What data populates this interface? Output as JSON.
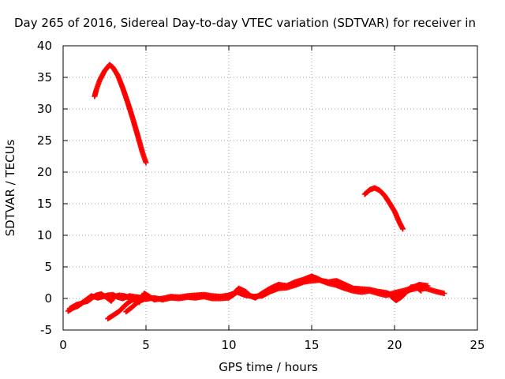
{
  "chart_data": {
    "type": "scatter",
    "title": "Day 265 of 2016, Sidereal Day-to-day VTEC variation (SDTVAR) for receiver in",
    "xlabel": "GPS time / hours",
    "ylabel": "SDTVAR / TECUs",
    "xlim": [
      0,
      25
    ],
    "ylim": [
      -5,
      40
    ],
    "xticks": [
      0,
      5,
      10,
      15,
      20,
      25
    ],
    "yticks": [
      -5,
      0,
      5,
      10,
      15,
      20,
      25,
      30,
      35,
      40
    ],
    "grid": true,
    "grid_style": "dotted",
    "marker": "plus",
    "color": "#ff0000",
    "series": [
      {
        "segments": [
          [
            [
              1.9,
              32.0
            ],
            [
              2.0,
              33.0
            ],
            [
              2.2,
              34.5
            ],
            [
              2.5,
              36.0
            ],
            [
              2.8,
              37.0
            ],
            [
              3.0,
              36.6
            ],
            [
              3.3,
              35.3
            ],
            [
              3.6,
              33.3
            ],
            [
              3.9,
              31.0
            ],
            [
              4.2,
              28.5
            ],
            [
              4.5,
              25.8
            ],
            [
              4.8,
              23.0
            ],
            [
              5.0,
              21.5
            ]
          ],
          [
            [
              18.2,
              16.5
            ],
            [
              18.5,
              17.2
            ],
            [
              18.8,
              17.5
            ],
            [
              19.1,
              17.1
            ],
            [
              19.4,
              16.3
            ],
            [
              19.7,
              15.1
            ],
            [
              20.0,
              13.8
            ],
            [
              20.3,
              12.0
            ],
            [
              20.5,
              11.0
            ]
          ],
          [
            [
              0.3,
              -2.0
            ],
            [
              0.6,
              -1.5
            ],
            [
              0.9,
              -1.2
            ],
            [
              1.2,
              -0.6
            ],
            [
              1.5,
              -0.4
            ],
            [
              1.8,
              0.2
            ],
            [
              2.0,
              0.5
            ],
            [
              2.3,
              0.7
            ],
            [
              2.6,
              0.2
            ],
            [
              2.9,
              -0.4
            ],
            [
              3.1,
              0.3
            ],
            [
              3.4,
              0.5
            ],
            [
              3.7,
              0.4
            ],
            [
              4.0,
              0.1
            ],
            [
              4.3,
              -0.2
            ],
            [
              4.6,
              -0.6
            ],
            [
              4.9,
              0.8
            ],
            [
              5.2,
              0.3
            ],
            [
              5.5,
              -0.2
            ],
            [
              6.0,
              0.0
            ],
            [
              6.5,
              0.3
            ],
            [
              7.0,
              0.2
            ],
            [
              7.5,
              0.4
            ],
            [
              8.0,
              0.5
            ],
            [
              8.5,
              0.6
            ],
            [
              9.0,
              0.4
            ],
            [
              9.5,
              0.3
            ],
            [
              10.0,
              0.5
            ],
            [
              10.3,
              0.8
            ],
            [
              10.6,
              1.6
            ],
            [
              11.0,
              1.1
            ],
            [
              11.3,
              0.4
            ],
            [
              11.6,
              0.1
            ],
            [
              12.0,
              0.8
            ],
            [
              12.5,
              1.6
            ],
            [
              13.0,
              2.2
            ],
            [
              13.5,
              2.0
            ],
            [
              14.0,
              2.6
            ],
            [
              14.5,
              3.0
            ],
            [
              15.0,
              3.5
            ],
            [
              15.3,
              3.2
            ],
            [
              15.6,
              2.8
            ],
            [
              16.0,
              2.6
            ],
            [
              16.5,
              2.8
            ],
            [
              17.0,
              2.2
            ],
            [
              17.5,
              1.6
            ],
            [
              18.0,
              1.5
            ],
            [
              18.5,
              1.4
            ],
            [
              19.0,
              1.1
            ],
            [
              19.5,
              0.9
            ],
            [
              20.0,
              0.4
            ],
            [
              20.5,
              0.9
            ],
            [
              21.0,
              1.4
            ],
            [
              21.5,
              1.7
            ],
            [
              22.0,
              1.5
            ],
            [
              22.5,
              1.1
            ],
            [
              23.0,
              0.8
            ]
          ],
          [
            [
              0.4,
              -1.6
            ],
            [
              0.8,
              -1.0
            ],
            [
              1.1,
              -0.8
            ],
            [
              1.4,
              -0.2
            ],
            [
              1.7,
              0.4
            ],
            [
              2.1,
              0.1
            ],
            [
              2.4,
              0.3
            ],
            [
              2.7,
              0.5
            ],
            [
              3.0,
              0.6
            ],
            [
              3.3,
              0.2
            ],
            [
              3.6,
              0.0
            ],
            [
              4.0,
              0.4
            ],
            [
              4.5,
              0.2
            ],
            [
              5.0,
              -0.1
            ],
            [
              5.5,
              0.1
            ],
            [
              6.0,
              -0.2
            ],
            [
              6.5,
              0.1
            ],
            [
              7.0,
              0.0
            ],
            [
              7.5,
              0.2
            ],
            [
              8.0,
              0.1
            ],
            [
              8.5,
              0.3
            ],
            [
              9.0,
              0.0
            ],
            [
              9.5,
              0.0
            ],
            [
              10.0,
              0.1
            ],
            [
              10.5,
              1.0
            ],
            [
              11.0,
              0.5
            ],
            [
              11.5,
              0.3
            ],
            [
              12.0,
              0.4
            ],
            [
              12.5,
              1.1
            ],
            [
              13.0,
              1.6
            ],
            [
              13.5,
              1.7
            ],
            [
              14.0,
              2.1
            ],
            [
              14.5,
              2.6
            ],
            [
              15.0,
              2.8
            ],
            [
              15.5,
              2.9
            ],
            [
              16.0,
              2.4
            ],
            [
              16.5,
              2.1
            ],
            [
              17.0,
              1.6
            ],
            [
              17.5,
              1.2
            ],
            [
              18.0,
              1.0
            ],
            [
              18.5,
              1.2
            ],
            [
              19.0,
              0.8
            ],
            [
              19.5,
              0.5
            ],
            [
              20.0,
              0.9
            ],
            [
              20.5,
              1.2
            ],
            [
              21.0,
              1.6
            ],
            [
              21.5,
              2.2
            ],
            [
              22.0,
              2.0
            ]
          ],
          [
            [
              2.7,
              -3.2
            ],
            [
              3.0,
              -2.7
            ],
            [
              3.4,
              -2.0
            ],
            [
              3.7,
              -1.2
            ],
            [
              4.0,
              -0.5
            ],
            [
              4.4,
              0.1
            ],
            [
              4.8,
              0.2
            ]
          ],
          [
            [
              3.8,
              -2.1
            ],
            [
              4.1,
              -1.5
            ],
            [
              4.4,
              -0.8
            ],
            [
              4.7,
              -0.3
            ],
            [
              5.0,
              0.0
            ]
          ],
          [
            [
              19.8,
              0.3
            ],
            [
              20.1,
              -0.3
            ],
            [
              20.4,
              0.2
            ],
            [
              20.7,
              1.0
            ],
            [
              21.0,
              1.8
            ],
            [
              21.3,
              1.9
            ],
            [
              21.6,
              1.2
            ]
          ]
        ]
      }
    ]
  }
}
